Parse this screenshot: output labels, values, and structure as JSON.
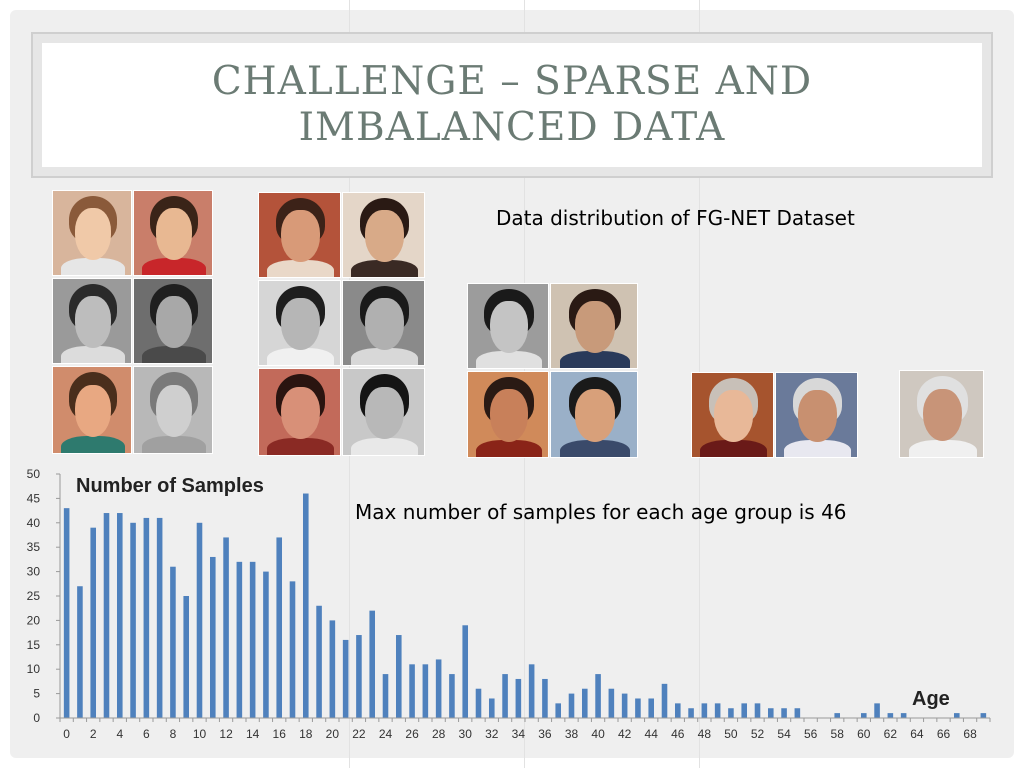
{
  "slide": {
    "title": "CHALLENGE – SPARSE AND IMBALANCED DATA",
    "caption_top": "Data distribution of FG-NET Dataset",
    "caption_right": "Max number of samples for each age group is 46"
  },
  "colors": {
    "title": "#6b7b74",
    "bar": "#4f81bd",
    "background": "#efefef"
  },
  "face_groups": [
    {
      "name": "faces-age-0-5",
      "count": 6
    },
    {
      "name": "faces-age-18-25",
      "count": 6
    },
    {
      "name": "faces-age-30-40",
      "count": 4
    },
    {
      "name": "faces-age-50-60",
      "count": 2
    },
    {
      "name": "faces-age-65-plus",
      "count": 1
    }
  ],
  "chart_data": {
    "type": "bar",
    "title": "Number of Samples",
    "xlabel": "Age",
    "ylabel": "",
    "ylim": [
      0,
      50
    ],
    "yticks": [
      0,
      5,
      10,
      15,
      20,
      25,
      30,
      35,
      40,
      45,
      50
    ],
    "xticks": [
      0,
      2,
      4,
      6,
      8,
      10,
      12,
      14,
      16,
      18,
      20,
      22,
      24,
      26,
      28,
      30,
      32,
      34,
      36,
      38,
      40,
      42,
      44,
      46,
      48,
      50,
      52,
      54,
      56,
      58,
      60,
      62,
      64,
      66,
      68
    ],
    "categories": [
      0,
      1,
      2,
      3,
      4,
      5,
      6,
      7,
      8,
      9,
      10,
      11,
      12,
      13,
      14,
      15,
      16,
      17,
      18,
      19,
      20,
      21,
      22,
      23,
      24,
      25,
      26,
      27,
      28,
      29,
      30,
      31,
      32,
      33,
      34,
      35,
      36,
      37,
      38,
      39,
      40,
      41,
      42,
      43,
      44,
      45,
      46,
      47,
      48,
      49,
      50,
      51,
      52,
      53,
      54,
      55,
      56,
      57,
      58,
      59,
      60,
      61,
      62,
      63,
      64,
      65,
      66,
      67,
      68,
      69
    ],
    "values": [
      43,
      27,
      39,
      42,
      42,
      40,
      41,
      41,
      31,
      25,
      40,
      33,
      37,
      32,
      32,
      30,
      37,
      28,
      46,
      23,
      20,
      16,
      17,
      22,
      9,
      17,
      11,
      11,
      12,
      9,
      19,
      6,
      4,
      9,
      8,
      11,
      8,
      3,
      5,
      6,
      9,
      6,
      5,
      4,
      4,
      7,
      3,
      2,
      3,
      3,
      2,
      3,
      3,
      2,
      2,
      2,
      0,
      0,
      1,
      0,
      1,
      3,
      1,
      1,
      0,
      0,
      0,
      1,
      0,
      1
    ],
    "grid": false,
    "legend": "none"
  }
}
